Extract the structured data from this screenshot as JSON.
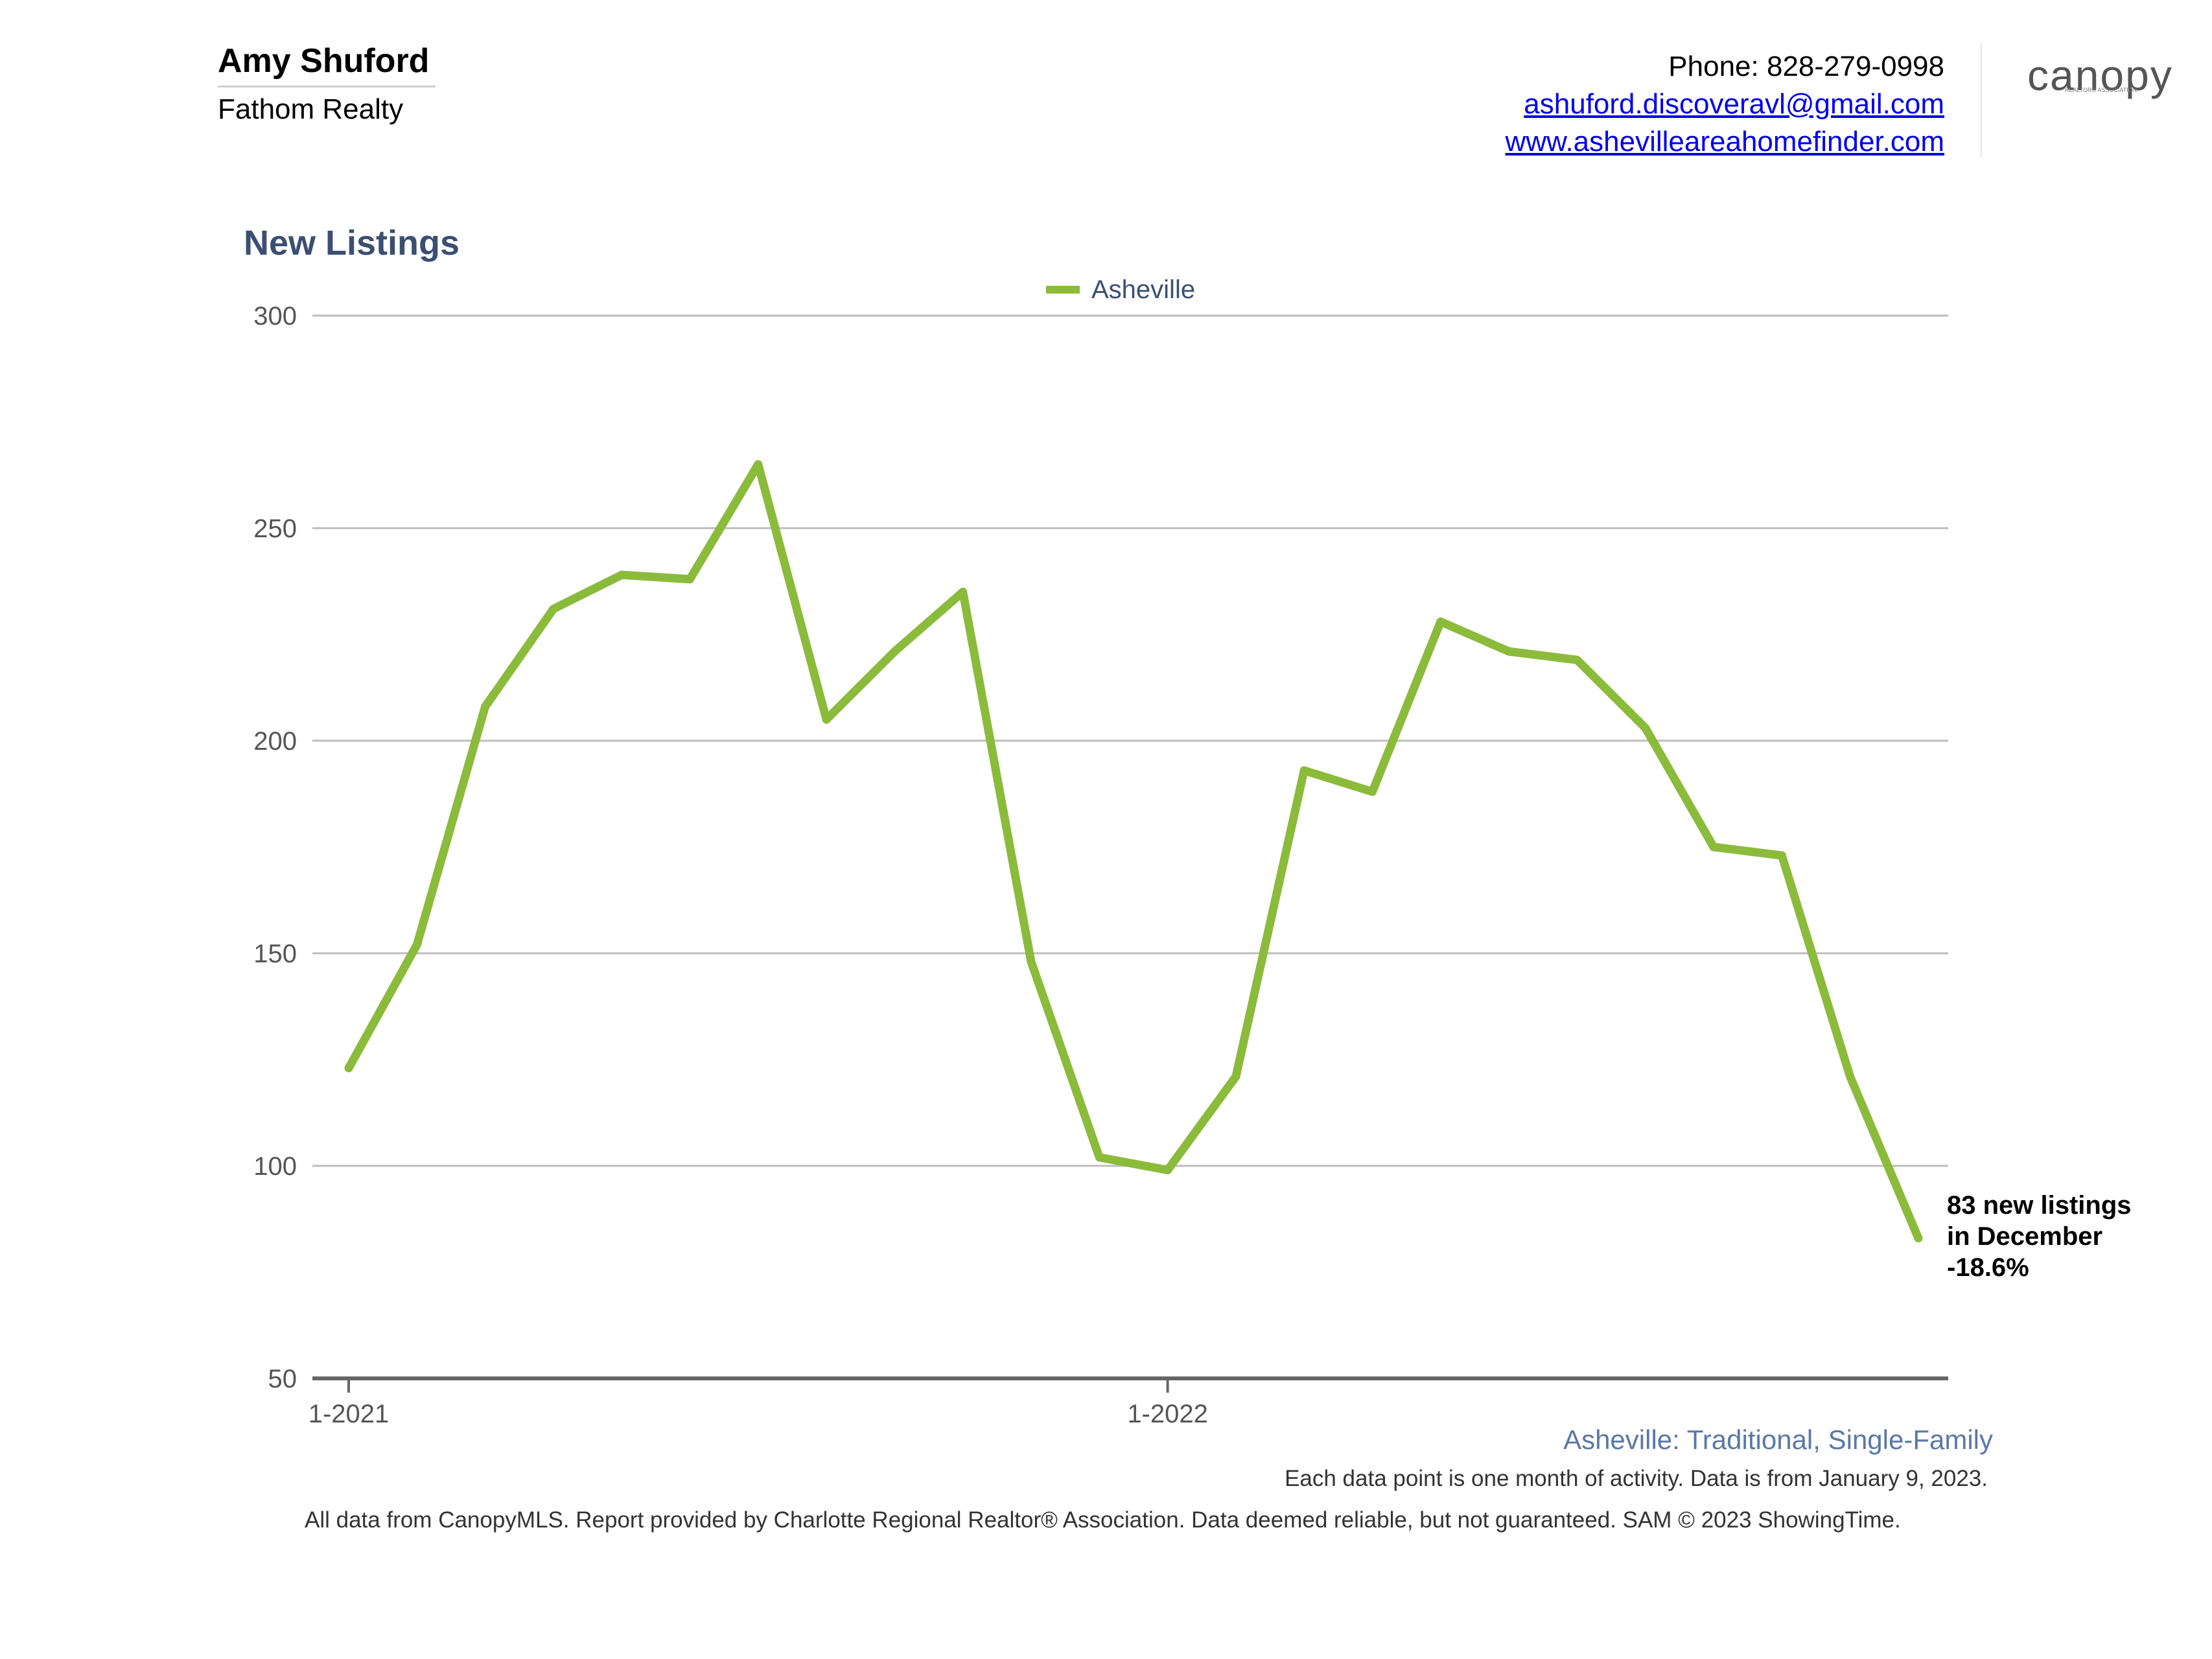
{
  "header": {
    "agent_name": "Amy Shuford",
    "company": "Fathom Realty",
    "phone": "Phone: 828-279-0998",
    "email": "ashuford.discoveravl@gmail.com",
    "website": "www.ashevilleareahomefinder.com",
    "logo_text": "canopy",
    "logo_subtext": "REALTOR® ASSOCIATION"
  },
  "chart_data": {
    "type": "line",
    "title": "New Listings",
    "xlabel": "",
    "ylabel": "",
    "ylim": [
      50,
      300
    ],
    "yticks": [
      50,
      100,
      150,
      200,
      250,
      300
    ],
    "x_tick_labels": [
      {
        "index": 0,
        "label": "1-2021"
      },
      {
        "index": 12,
        "label": "1-2022"
      }
    ],
    "x": [
      "1-2021",
      "2-2021",
      "3-2021",
      "4-2021",
      "5-2021",
      "6-2021",
      "7-2021",
      "8-2021",
      "9-2021",
      "10-2021",
      "11-2021",
      "12-2021",
      "1-2022",
      "2-2022",
      "3-2022",
      "4-2022",
      "5-2022",
      "6-2022",
      "7-2022",
      "8-2022",
      "9-2022",
      "10-2022",
      "11-2022",
      "12-2022"
    ],
    "series": [
      {
        "name": "Asheville",
        "color": "#8bbb3b",
        "values": [
          123,
          152,
          208,
          231,
          239,
          238,
          265,
          205,
          221,
          235,
          148,
          102,
          99,
          121,
          193,
          188,
          228,
          221,
          219,
          203,
          175,
          173,
          121,
          83
        ]
      }
    ],
    "legend": "top-center",
    "grid": true,
    "callout": {
      "line1": "83 new listings",
      "line2": "in December",
      "line3": "-18.6%"
    }
  },
  "footer": {
    "subtitle": "Asheville: Traditional, Single-Family",
    "note": "Each data point is one month of activity. Data is from January 9, 2023.",
    "disclaimer": "All data from CanopyMLS. Report provided by Charlotte Regional Realtor® Association. Data deemed reliable, but not guaranteed. SAM © 2023 ShowingTime."
  }
}
